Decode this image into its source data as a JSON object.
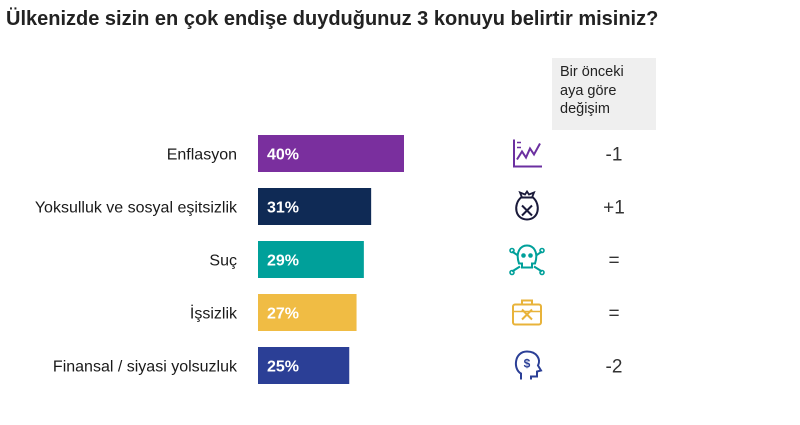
{
  "title": "Ülkenizde sizin en çok endişe duyduğunuz 3 konuyu belirtir misiniz?",
  "change_header": [
    "Bir önceki",
    "aya göre",
    "değişim"
  ],
  "colors": {
    "text": "#1a1a1a",
    "icon": "#6b2fa0"
  },
  "chart_data": {
    "type": "bar",
    "orientation": "horizontal",
    "categories": [
      "Enflasyon",
      "Yoksulluk ve sosyal eşitsizlik",
      "Suç",
      "İşsizlik",
      "Finansal / siyasi yolsuzluk"
    ],
    "values": [
      40,
      31,
      29,
      27,
      25
    ],
    "value_labels": [
      "40%",
      "31%",
      "29%",
      "27%",
      "25%"
    ],
    "bar_colors": [
      "#7a2f9e",
      "#0f2a55",
      "#00a09a",
      "#f0bc44",
      "#2b3f96"
    ],
    "changes": [
      "-1",
      "+1",
      "=",
      "=",
      "-2"
    ],
    "icons": [
      "chart-line-icon",
      "money-bag-icon",
      "skull-crossbones-icon",
      "briefcase-icon",
      "head-dollar-icon"
    ],
    "xlim": [
      0,
      100
    ]
  }
}
